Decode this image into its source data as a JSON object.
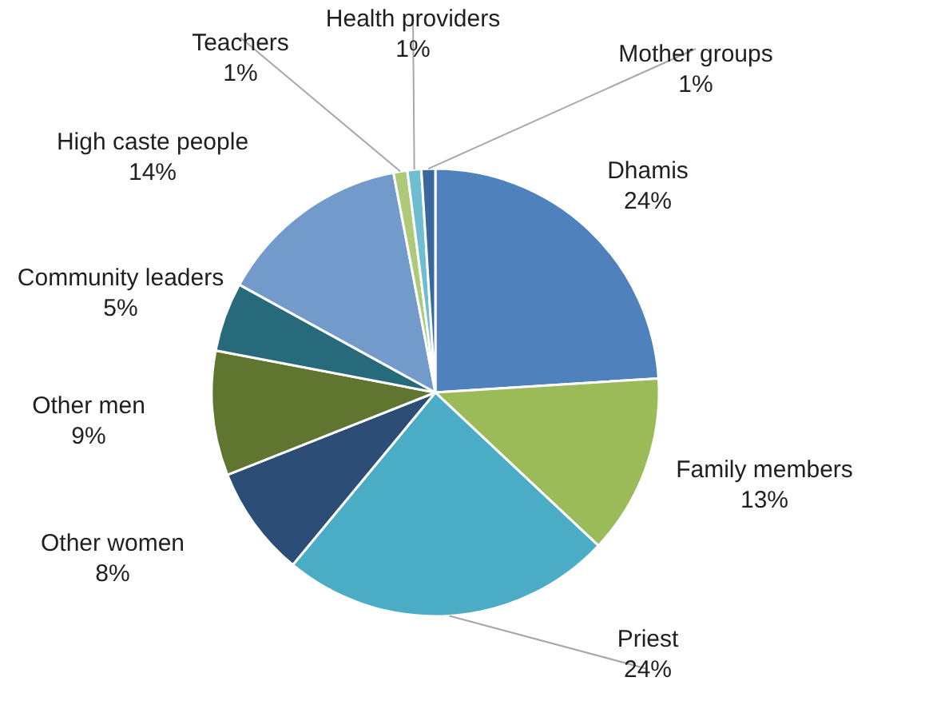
{
  "chart_data": {
    "type": "pie",
    "categories": [
      "Dhamis",
      "Family members",
      "Priest",
      "Other women",
      "Other men",
      "Community leaders",
      "High caste people",
      "Teachers",
      "Health providers",
      "Mother groups"
    ],
    "values": [
      24,
      13,
      24,
      8,
      9,
      5,
      14,
      1,
      1,
      1
    ],
    "value_labels": [
      "24%",
      "13%",
      "24%",
      "8%",
      "9%",
      "5%",
      "14%",
      "1%",
      "1%",
      "1%"
    ],
    "colors": [
      "#4f81bd",
      "#9bbb59",
      "#4bacc6",
      "#2c4d75",
      "#5f7530",
      "#276a7c",
      "#729aca",
      "#afc97a",
      "#6fbdd1",
      "#3a679c"
    ]
  }
}
